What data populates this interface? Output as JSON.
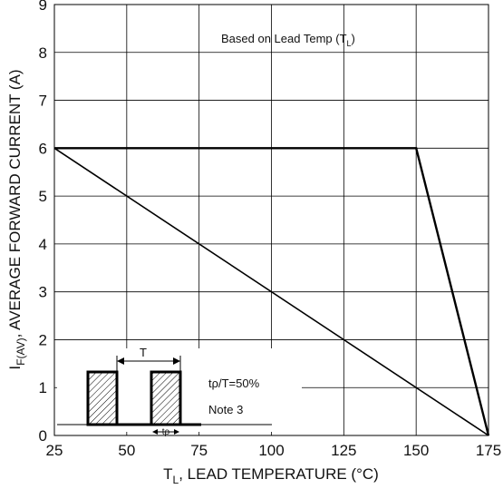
{
  "chart_data": {
    "type": "line",
    "xlabel_main": "T",
    "xlabel_sub": "L",
    "xlabel_rest": ", LEAD TEMPERATURE (°C)",
    "ylabel_main": "I",
    "ylabel_sub": "F(AV)",
    "ylabel_rest": ", AVERAGE FORWARD CURRENT (A)",
    "xlim": [
      25,
      175
    ],
    "ylim": [
      0,
      9
    ],
    "x_ticks": [
      "25",
      "50",
      "75",
      "100",
      "125",
      "150",
      "175"
    ],
    "y_ticks": [
      "0",
      "1",
      "2",
      "3",
      "4",
      "5",
      "6",
      "7",
      "8",
      "9"
    ],
    "grid": true,
    "series": [
      {
        "x": [
          25,
          150,
          175
        ],
        "y": [
          6,
          6,
          0
        ]
      },
      {
        "x": [
          25,
          175
        ],
        "y": [
          6,
          0
        ]
      }
    ],
    "annotation": {
      "prefix": "Based on Lead Temp (T",
      "sub": "L",
      "suffix": ")"
    },
    "inset": {
      "period_label": "T",
      "pulse_label": "tρ",
      "duty_label": "tρ/T=50%",
      "note_label": "Note 3"
    }
  }
}
